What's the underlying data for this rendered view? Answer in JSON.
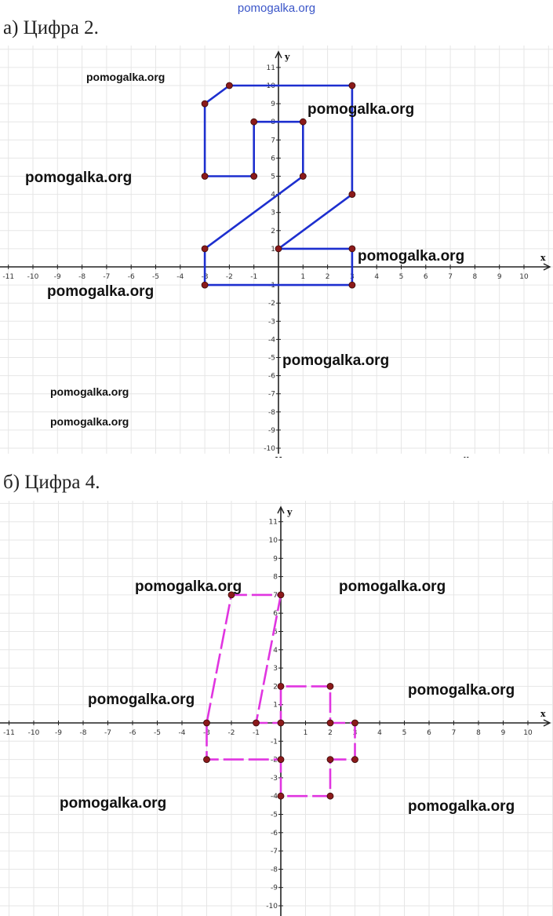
{
  "header": {
    "watermark": "pomogalka.org"
  },
  "captions": {
    "a": "а) Цифра 2.",
    "b": "б) Цифра 4."
  },
  "watermark_text": "pomogalka.org",
  "colors": {
    "grid": "#e6e6e6",
    "axis": "#222222",
    "shape_a": "#1d2fcf",
    "shape_b": "#e035e0",
    "point": "#8b1a1a",
    "point_faded": "#c9a3a3"
  },
  "chart_data": [
    {
      "type": "diagram",
      "title": "а) Цифра 2.",
      "xlabel": "x",
      "ylabel": "y",
      "xlim": [
        -11,
        10
      ],
      "ylim": [
        -10,
        11
      ],
      "x_ticks": [
        -11,
        -10,
        -9,
        -8,
        -7,
        -6,
        -5,
        -4,
        -3,
        -2,
        -1,
        1,
        2,
        3,
        4,
        5,
        6,
        7,
        8,
        9,
        10
      ],
      "y_ticks": [
        -10,
        -9,
        -8,
        -7,
        -6,
        -5,
        -4,
        -3,
        -2,
        -1,
        1,
        2,
        3,
        4,
        5,
        6,
        7,
        8,
        9,
        10,
        11
      ],
      "grid": true,
      "polylines": [
        {
          "closed": true,
          "points": [
            [
              -3,
              9
            ],
            [
              -2,
              10
            ],
            [
              3,
              10
            ],
            [
              3,
              4
            ],
            [
              0,
              1
            ],
            [
              3,
              1
            ],
            [
              3,
              -1
            ],
            [
              -3,
              -1
            ],
            [
              -3,
              1
            ],
            [
              1,
              5
            ],
            [
              1,
              8
            ],
            [
              -1,
              8
            ],
            [
              -1,
              5
            ],
            [
              -3,
              5
            ]
          ]
        }
      ],
      "points": [
        [
          -3,
          9
        ],
        [
          -2,
          10
        ],
        [
          3,
          10
        ],
        [
          3,
          4
        ],
        [
          0,
          1
        ],
        [
          3,
          1
        ],
        [
          3,
          -1
        ],
        [
          -3,
          -1
        ],
        [
          -3,
          1
        ],
        [
          1,
          5
        ],
        [
          1,
          8
        ],
        [
          -1,
          8
        ],
        [
          -1,
          5
        ],
        [
          -3,
          5
        ]
      ]
    },
    {
      "type": "diagram",
      "title": "б) Цифра 4.",
      "xlabel": "x",
      "ylabel": "y",
      "xlim": [
        -11,
        10
      ],
      "ylim": [
        -10,
        11
      ],
      "x_ticks": [
        -11,
        -10,
        -9,
        -8,
        -7,
        -6,
        -5,
        -4,
        -3,
        -2,
        -1,
        1,
        2,
        3,
        4,
        5,
        6,
        7,
        8,
        9,
        10
      ],
      "y_ticks": [
        -10,
        -9,
        -8,
        -7,
        -6,
        -5,
        -4,
        -3,
        -2,
        -1,
        1,
        2,
        3,
        4,
        5,
        6,
        7,
        8,
        9,
        10,
        11
      ],
      "grid": true,
      "polylines": [
        {
          "closed": true,
          "points": [
            [
              -3,
              0
            ],
            [
              -2,
              7
            ],
            [
              0,
              7
            ],
            [
              -1,
              0
            ],
            [
              0,
              0
            ],
            [
              0,
              2
            ],
            [
              2,
              2
            ],
            [
              2,
              0
            ],
            [
              3,
              0
            ],
            [
              3,
              -2
            ],
            [
              2,
              -2
            ],
            [
              2,
              -4
            ],
            [
              0,
              -4
            ],
            [
              0,
              -2
            ],
            [
              -3,
              -2
            ]
          ]
        }
      ],
      "points": [
        [
          -3,
          0
        ],
        [
          -2,
          7
        ],
        [
          0,
          7
        ],
        [
          -1,
          0
        ],
        [
          0,
          0
        ],
        [
          0,
          2
        ],
        [
          2,
          2
        ],
        [
          2,
          0
        ],
        [
          3,
          0
        ],
        [
          3,
          -2
        ],
        [
          2,
          -2
        ],
        [
          2,
          -4
        ],
        [
          0,
          -4
        ],
        [
          0,
          -2
        ],
        [
          -3,
          -2
        ]
      ]
    }
  ]
}
